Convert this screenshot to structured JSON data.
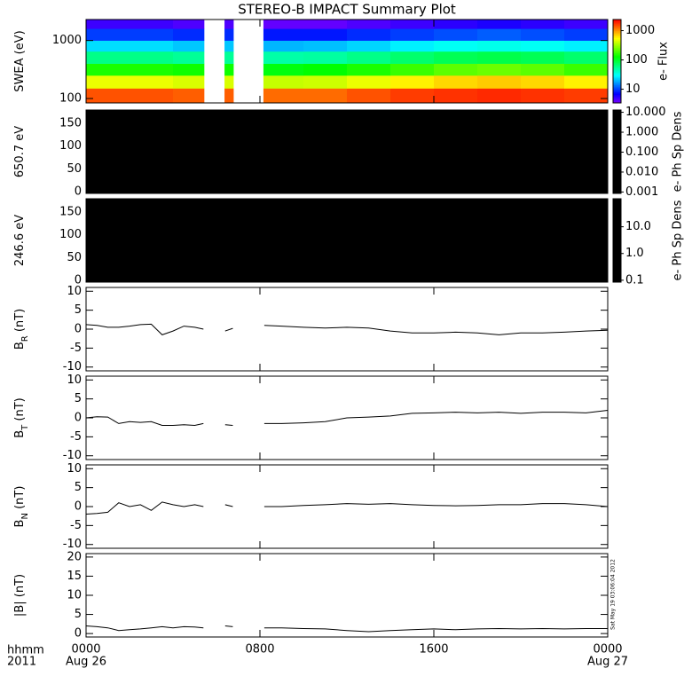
{
  "title": "STEREO-B IMPACT Summary Plot",
  "timestamp": "Sat May 19 03:06:04 2012",
  "x_axis": {
    "xlim": [
      0,
      24
    ],
    "xticks": [
      {
        "value": 0,
        "label": "0000"
      },
      {
        "value": 8,
        "label": "0800"
      },
      {
        "value": 16,
        "label": "1600"
      },
      {
        "value": 24,
        "label": "0000"
      }
    ],
    "format_label": "hhmm",
    "year": "2011",
    "start_date": "Aug 26",
    "end_date": "Aug 27"
  },
  "chart_data": [
    {
      "type": "spectrogram",
      "ylabel": "SWEA (eV)",
      "log": true,
      "ylim": [
        84,
        2300
      ],
      "yticks": [
        100,
        1000
      ],
      "x_bins": [
        0,
        2,
        4,
        5.43,
        6.37,
        6.78,
        8.16,
        10,
        12,
        14,
        16,
        18,
        20,
        22,
        24
      ],
      "y_bins": [
        84,
        150,
        250,
        400,
        650,
        1000,
        1600,
        2300
      ],
      "values": [
        [
          1500,
          1500,
          1400,
          null,
          1400,
          null,
          1300,
          1300,
          1500,
          1700,
          1800,
          1900,
          1800,
          1700
        ],
        [
          500,
          500,
          450,
          null,
          450,
          null,
          400,
          420,
          500,
          600,
          700,
          750,
          700,
          600
        ],
        [
          150,
          150,
          140,
          null,
          140,
          null,
          120,
          130,
          150,
          180,
          220,
          240,
          220,
          180
        ],
        [
          60,
          60,
          55,
          null,
          55,
          null,
          50,
          52,
          60,
          70,
          80,
          85,
          80,
          70
        ],
        [
          25,
          25,
          22,
          null,
          22,
          null,
          20,
          21,
          24,
          28,
          32,
          34,
          32,
          28
        ],
        [
          10,
          10,
          9,
          null,
          9,
          null,
          8,
          8,
          9,
          10,
          11,
          12,
          11,
          10
        ],
        [
          5,
          5,
          4.5,
          null,
          4.5,
          null,
          4,
          4,
          4.5,
          5,
          5.5,
          6,
          5.5,
          5
        ]
      ],
      "colorbar": {
        "label": "e- Flux",
        "colormap": "rainbow",
        "log": true,
        "zlim": [
          3.4,
          2400
        ],
        "ticks": [
          10,
          100,
          1000
        ]
      }
    },
    {
      "type": "pitch_angle",
      "ylabel": "650.7 eV",
      "ylim": [
        -4,
        179
      ],
      "yticks": [
        0,
        50,
        100,
        150
      ],
      "color": "#000000",
      "colorbar": {
        "label": "e- Ph Sp Dens",
        "color": "#000000",
        "log": true,
        "zlim": [
          0.00085,
          13
        ],
        "ticks": [
          {
            "value": 10,
            "label": "10.000"
          },
          {
            "value": 1,
            "label": "1.000"
          },
          {
            "value": 0.1,
            "label": "0.100"
          },
          {
            "value": 0.01,
            "label": "0.010"
          },
          {
            "value": 0.001,
            "label": "0.001"
          }
        ]
      }
    },
    {
      "type": "pitch_angle",
      "ylabel": "246.6 eV",
      "ylim": [
        -4,
        179
      ],
      "yticks": [
        0,
        50,
        100,
        150
      ],
      "color": "#000000",
      "colorbar": {
        "label": "e- Ph Sp Dens",
        "color": "#000000",
        "log": true,
        "zlim": [
          0.085,
          112
        ],
        "ticks": [
          {
            "value": 10,
            "label": "10.0"
          },
          {
            "value": 1,
            "label": "1.0"
          },
          {
            "value": 0.1,
            "label": "0.1"
          }
        ]
      }
    },
    {
      "type": "line",
      "ylabel": "B",
      "ylabel_sub": "R",
      "ylabel_unit": "(nT)",
      "ylim": [
        -11,
        11
      ],
      "yticks": [
        -10,
        -5,
        0,
        5,
        10
      ],
      "color": "#000000",
      "x": [
        0,
        0.5,
        1,
        1.5,
        2,
        2.5,
        3,
        3.5,
        4,
        4.5,
        5,
        5.4,
        5.9,
        6.4,
        6.75,
        7.5,
        8.2,
        9,
        10,
        11,
        12,
        13,
        14,
        15,
        16,
        17,
        18,
        19,
        20,
        21,
        22,
        23,
        24
      ],
      "values": [
        1.2,
        1,
        0.5,
        0.5,
        0.8,
        1.2,
        1.3,
        -1.5,
        -0.5,
        0.8,
        0.5,
        0,
        null,
        -0.5,
        0.2,
        null,
        1,
        0.8,
        0.5,
        0.3,
        0.5,
        0.3,
        -0.5,
        -1,
        -1,
        -0.8,
        -1,
        -1.5,
        -1,
        -1,
        -0.8,
        -0.5,
        -0.3
      ]
    },
    {
      "type": "line",
      "ylabel": "B",
      "ylabel_sub": "T",
      "ylabel_unit": "(nT)",
      "ylim": [
        -11,
        11
      ],
      "yticks": [
        -10,
        -5,
        0,
        5,
        10
      ],
      "color": "#000000",
      "x": [
        0,
        0.5,
        1,
        1.5,
        2,
        2.5,
        3,
        3.5,
        4,
        4.5,
        5,
        5.4,
        5.9,
        6.4,
        6.75,
        7.5,
        8.2,
        9,
        10,
        11,
        12,
        13,
        14,
        15,
        16,
        17,
        18,
        19,
        20,
        21,
        22,
        23,
        24
      ],
      "values": [
        0,
        0.3,
        0.2,
        -1.5,
        -1,
        -1.2,
        -1,
        -2,
        -2,
        -1.8,
        -2,
        -1.5,
        null,
        -1.8,
        -2,
        null,
        -1.5,
        -1.5,
        -1.3,
        -1,
        0,
        0.2,
        0.5,
        1.2,
        1.3,
        1.5,
        1.3,
        1.5,
        1.2,
        1.5,
        1.5,
        1.3,
        2
      ]
    },
    {
      "type": "line",
      "ylabel": "B",
      "ylabel_sub": "N",
      "ylabel_unit": "(nT)",
      "ylim": [
        -11,
        11
      ],
      "yticks": [
        -10,
        -5,
        0,
        5,
        10
      ],
      "color": "#000000",
      "x": [
        0,
        0.5,
        1,
        1.5,
        2,
        2.5,
        3,
        3.5,
        4,
        4.5,
        5,
        5.4,
        5.9,
        6.4,
        6.75,
        7.5,
        8.2,
        9,
        10,
        11,
        12,
        13,
        14,
        15,
        16,
        17,
        18,
        19,
        20,
        21,
        22,
        23,
        24
      ],
      "values": [
        -2,
        -1.8,
        -1.5,
        1,
        0,
        0.5,
        -1,
        1.2,
        0.5,
        0,
        0.5,
        0,
        null,
        0.5,
        0,
        null,
        0,
        0,
        0.3,
        0.5,
        0.8,
        0.6,
        0.8,
        0.5,
        0.3,
        0.2,
        0.3,
        0.5,
        0.5,
        0.8,
        0.8,
        0.5,
        0
      ]
    },
    {
      "type": "line",
      "ylabel": "|B| (nT)",
      "ylim": [
        -0.9,
        20.9
      ],
      "yticks": [
        0,
        5,
        10,
        15,
        20
      ],
      "color": "#000000",
      "x": [
        0,
        0.5,
        1,
        1.5,
        2,
        2.5,
        3,
        3.5,
        4,
        4.5,
        5,
        5.4,
        5.9,
        6.4,
        6.75,
        7.5,
        8.2,
        9,
        10,
        11,
        12,
        13,
        14,
        15,
        16,
        17,
        18,
        19,
        20,
        21,
        22,
        23,
        24
      ],
      "values": [
        2,
        1.8,
        1.5,
        0.8,
        1,
        1.2,
        1.5,
        1.8,
        1.5,
        1.8,
        1.7,
        1.5,
        null,
        2,
        1.8,
        null,
        1.5,
        1.5,
        1.3,
        1.2,
        0.8,
        0.5,
        0.8,
        1,
        1.2,
        1,
        1.2,
        1.3,
        1.2,
        1.3,
        1.2,
        1.3,
        1.3
      ]
    }
  ]
}
